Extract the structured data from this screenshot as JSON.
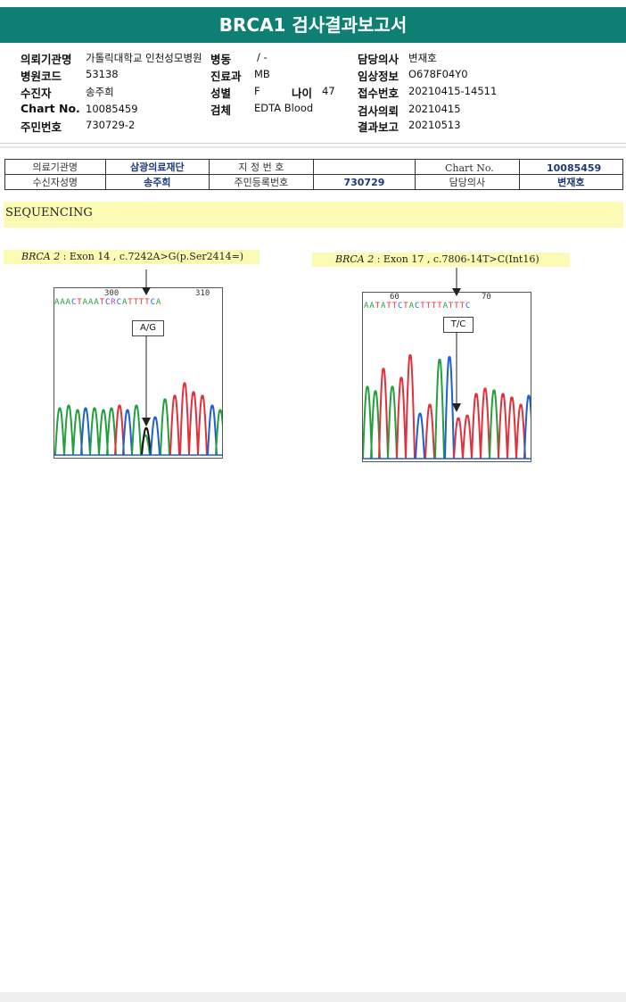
{
  "report": {
    "title": "BRCA1 검사결과보고서"
  },
  "patient_info": {
    "institution_label": "의뢰기관명",
    "institution_value": "가톨릭대학교 인천성모병원",
    "ward_label": "병동",
    "ward_value": "/ -",
    "doctor_label": "담당의사",
    "doctor_value": "변재호",
    "hospital_code_label": "병원코드",
    "hospital_code_value": "53138",
    "department_label": "진료과",
    "department_value": "MB",
    "clinical_info_label": "임상정보",
    "clinical_info_value": "O678F04Y0",
    "patient_label": "수진자",
    "patient_value": "송주희",
    "sex_label": "성별",
    "sex_value": "F",
    "age_label": "나이",
    "age_value": "47",
    "accession_label": "접수번호",
    "accession_value": "20210415-14511",
    "chart_label": "Chart No.",
    "chart_value": "10085459",
    "specimen_label": "검체",
    "specimen_value": "EDTA Blood",
    "request_label": "검사의뢰",
    "request_value": "20210415",
    "id_label": "주민번호",
    "id_value": "730729-2",
    "result_label": "결과보고",
    "result_value": "20210513"
  },
  "table": {
    "r1c1": "의료기관명",
    "r1c2": "삼광의료재단",
    "r1c3": "지 정 번 호",
    "r1c4": "",
    "r2c1": "수신자성명",
    "r2c2": "송주희",
    "r2c3": "주민등록번호",
    "r2c4": "730729",
    "chart_label": "Chart No.",
    "chart_value": "10085459",
    "doctor_label": "담당의사",
    "doctor_value": "변재호"
  },
  "sequencing": {
    "title": "SEQUENCING",
    "variant1": {
      "gene": "BRCA 2",
      "desc": " : Exon 14 , c.7242A>G(p.Ser2414=)",
      "pos_left": "300",
      "pos_right": "310",
      "bases": "AAACTAAATCRCATTTTCA",
      "call": "A/G"
    },
    "variant2": {
      "gene": "BRCA 2",
      "desc": " : Exon 17 , c.7806-14T>C(Int16)",
      "pos_left": "60",
      "pos_right": "70",
      "bases": "AATATTCTACTTTTATTTC",
      "call": "T/C"
    }
  },
  "colors": {
    "header": "#0f7f74",
    "highlight": "#fbfbb4",
    "A": "#22a03c",
    "C": "#1f5fd0",
    "G": "#111111",
    "T": "#e0303a"
  }
}
